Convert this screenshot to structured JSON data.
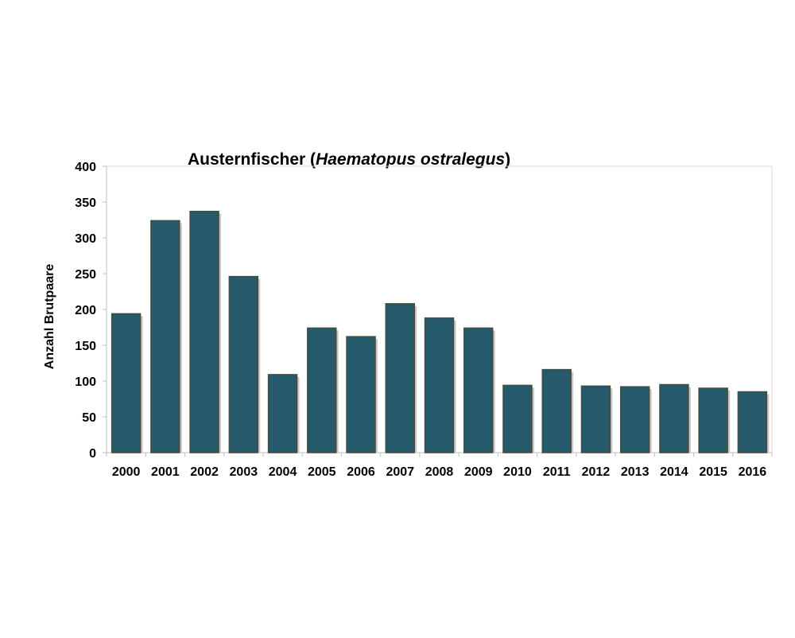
{
  "chart_data": {
    "type": "bar",
    "title": "Austernfischer (",
    "title_italic": "Haematopus ostralegus",
    "title_end": ")",
    "xlabel": "",
    "ylabel": "Anzahl Brutpaare",
    "ylim": [
      0,
      400
    ],
    "yticks": [
      0,
      50,
      100,
      150,
      200,
      250,
      300,
      350,
      400
    ],
    "grid": false,
    "categories": [
      "2000",
      "2001",
      "2002",
      "2003",
      "2004",
      "2005",
      "2006",
      "2007",
      "2008",
      "2009",
      "2010",
      "2011",
      "2012",
      "2013",
      "2014",
      "2015",
      "2016"
    ],
    "values": [
      194,
      324,
      337,
      246,
      109,
      174,
      162,
      208,
      188,
      174,
      94,
      116,
      93,
      92,
      95,
      90,
      85
    ],
    "bar_color": "#245a6b",
    "bar_edge_color": "#4a4a3a"
  }
}
